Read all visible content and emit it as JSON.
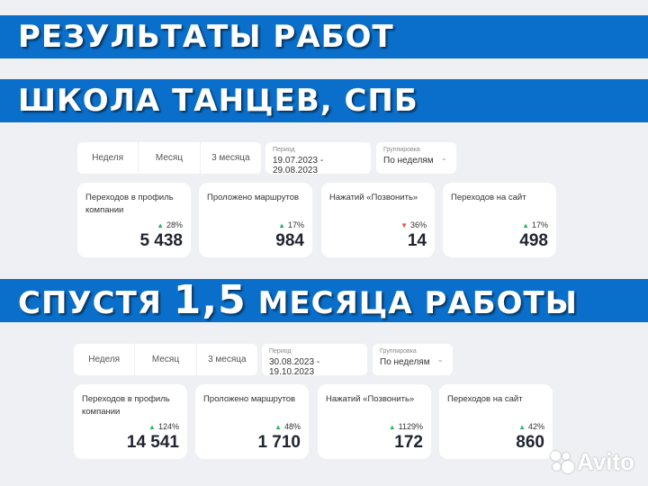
{
  "banners": {
    "title": "РЕЗУЛЬТАТЫ РАБОТ",
    "subtitle": "ШКОЛА ТАНЦЕВ, СПБ",
    "after_prefix": "СПУСТЯ",
    "after_big": "1,5",
    "after_suffix": "МЕСЯЦА РАБОТЫ"
  },
  "colors": {
    "banner": "#0a6fcb",
    "up": "#2bb36a",
    "down": "#e5533c"
  },
  "dashboards": [
    {
      "tabs": [
        "Неделя",
        "Месяц",
        "3 месяца"
      ],
      "period_label": "Период",
      "period": "19.07.2023 - 29.08.2023",
      "grouping_label": "Группировка",
      "grouping": "По неделям",
      "cards": [
        {
          "title": "Переходов в профиль компании",
          "change": "28%",
          "trend": "up",
          "value": "5 438"
        },
        {
          "title": "Проложено маршрутов",
          "change": "17%",
          "trend": "up",
          "value": "984"
        },
        {
          "title": "Нажатий «Позвонить»",
          "change": "36%",
          "trend": "down",
          "value": "14"
        },
        {
          "title": "Переходов на сайт",
          "change": "17%",
          "trend": "up",
          "value": "498"
        }
      ]
    },
    {
      "tabs": [
        "Неделя",
        "Месяц",
        "3 месяца"
      ],
      "period_label": "Период",
      "period": "30.08.2023 - 19.10.2023",
      "grouping_label": "Группировка",
      "grouping": "По неделям",
      "cards": [
        {
          "title": "Переходов в профиль компании",
          "change": "124%",
          "trend": "up",
          "value": "14 541"
        },
        {
          "title": "Проложено маршрутов",
          "change": "48%",
          "trend": "up",
          "value": "1 710"
        },
        {
          "title": "Нажатий «Позвонить»",
          "change": "1129%",
          "trend": "up",
          "value": "172"
        },
        {
          "title": "Переходов на сайт",
          "change": "42%",
          "trend": "up",
          "value": "860"
        }
      ]
    }
  ],
  "watermark": "Avito"
}
